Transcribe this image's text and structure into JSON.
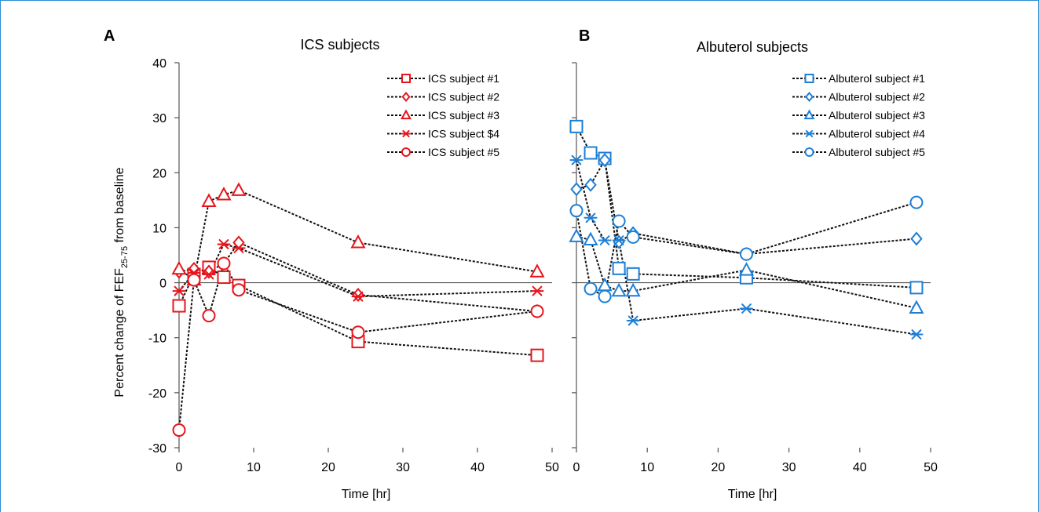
{
  "chart_data": [
    {
      "panel_letter": "A",
      "type": "line",
      "title": "ICS subjects",
      "xlabel": "Time [hr]",
      "ylabel": "Percent change of FEF",
      "ylabel_sub": "25-75",
      "ylabel_tail": " from baseline",
      "xlim": [
        0,
        50
      ],
      "ylim": [
        -30,
        40
      ],
      "xticks": [
        0,
        10,
        20,
        30,
        40,
        50
      ],
      "yticks": [
        -30,
        -20,
        -10,
        0,
        10,
        20,
        30,
        40
      ],
      "grid": false,
      "legend_position": "top-right",
      "color": "#e8141b",
      "series": [
        {
          "name": "ICS subject #1",
          "marker": "square",
          "x": [
            0,
            2,
            4,
            6,
            8,
            24,
            48
          ],
          "y": [
            -4.2,
            1.5,
            2.8,
            1.0,
            -0.5,
            -10.7,
            -13.2
          ]
        },
        {
          "name": "ICS subject #2",
          "marker": "diamond",
          "x": [
            0,
            2,
            4,
            6,
            8,
            24,
            48
          ],
          "y": [
            2.0,
            2.5,
            2.0,
            3.5,
            7.3,
            -2.2,
            -5.2
          ]
        },
        {
          "name": "ICS subject #3",
          "marker": "triangle",
          "x": [
            0,
            2,
            4,
            6,
            8,
            24,
            48
          ],
          "y": [
            2.5,
            0.5,
            14.8,
            16.0,
            16.8,
            7.3,
            2.0
          ]
        },
        {
          "name": "ICS subject $4",
          "marker": "asterisk",
          "x": [
            0,
            2,
            4,
            6,
            8,
            24,
            48
          ],
          "y": [
            -1.5,
            1.8,
            1.5,
            7.0,
            6.3,
            -2.5,
            -1.5
          ]
        },
        {
          "name": "ICS subject #5",
          "marker": "circle",
          "x": [
            0,
            2,
            4,
            6,
            8,
            24,
            48
          ],
          "y": [
            -26.8,
            0.5,
            -6.0,
            3.5,
            -1.3,
            -9.0,
            -5.2
          ]
        }
      ]
    },
    {
      "panel_letter": "B",
      "type": "line",
      "title": "Albuterol subjects",
      "xlabel": "Time [hr]",
      "xlim": [
        0,
        50
      ],
      "ylim": [
        -30,
        40
      ],
      "xticks": [
        0,
        10,
        20,
        30,
        40,
        50
      ],
      "yticks": [
        -30,
        -20,
        -10,
        0,
        10,
        20,
        30,
        40
      ],
      "grid": false,
      "legend_position": "top-right",
      "color": "#1f7fd6",
      "series": [
        {
          "name": "Albuterol subject #1",
          "marker": "square",
          "x": [
            0,
            2,
            4,
            6,
            8,
            24,
            48
          ],
          "y": [
            28.4,
            23.6,
            22.6,
            2.6,
            1.6,
            0.9,
            -0.9
          ]
        },
        {
          "name": "Albuterol subject #2",
          "marker": "diamond",
          "x": [
            0,
            2,
            4,
            6,
            8,
            24,
            48
          ],
          "y": [
            17.0,
            17.8,
            22.3,
            7.4,
            9.0,
            5.2,
            8.0
          ]
        },
        {
          "name": "Albuterol subject #3",
          "marker": "triangle",
          "x": [
            0,
            2,
            4,
            6,
            8,
            24,
            48
          ],
          "y": [
            8.4,
            7.8,
            -0.5,
            -1.5,
            -1.5,
            2.3,
            -4.6
          ]
        },
        {
          "name": "Albuterol subject #4",
          "marker": "asterisk",
          "x": [
            0,
            2,
            4,
            6,
            8,
            24,
            48
          ],
          "y": [
            22.3,
            11.8,
            7.7,
            7.7,
            -6.9,
            -4.7,
            -9.4
          ]
        },
        {
          "name": "Albuterol subject #5",
          "marker": "circle",
          "x": [
            0,
            2,
            4,
            6,
            8,
            24,
            48
          ],
          "y": [
            13.1,
            -1.1,
            -2.5,
            11.2,
            8.3,
            5.2,
            14.6
          ]
        }
      ]
    }
  ]
}
